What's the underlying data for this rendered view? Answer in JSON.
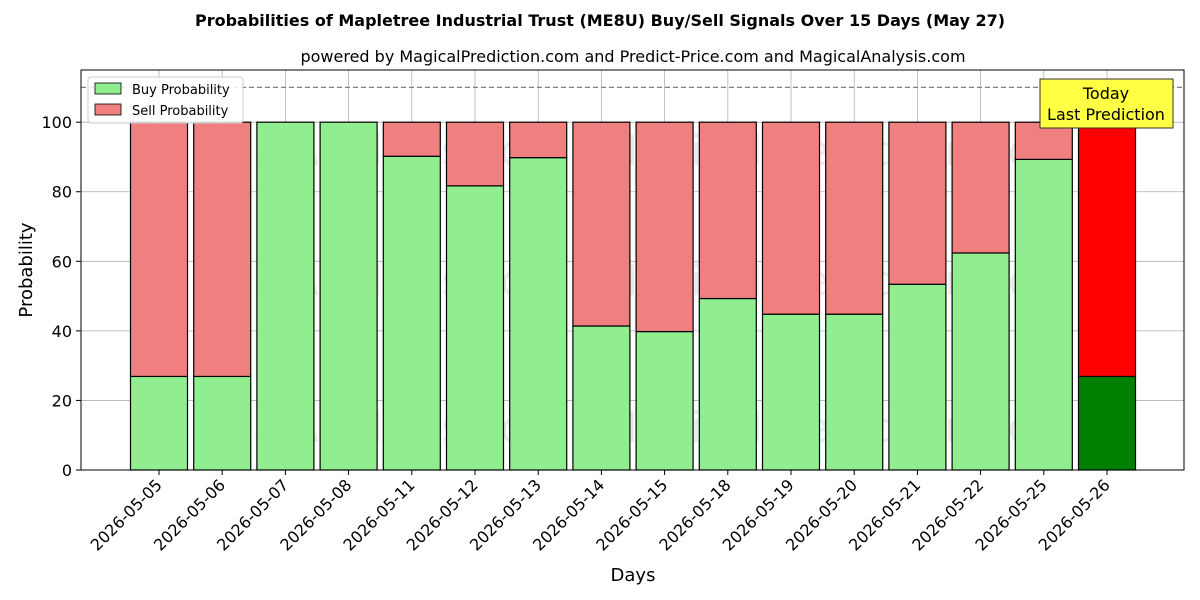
{
  "chart_data": {
    "type": "bar",
    "stacked": true,
    "title": "Probabilities of Mapletree Industrial Trust (ME8U) Buy/Sell Signals Over 15 Days (May 27)",
    "subtitle": "powered by MagicalPrediction.com and Predict-Price.com and MagicalAnalysis.com",
    "xlabel": "Days",
    "ylabel": "Probability",
    "ylim": [
      0,
      115
    ],
    "yticks": [
      "0",
      "20",
      "40",
      "60",
      "80",
      "100"
    ],
    "reference_line": 110,
    "grid": true,
    "legend_position": "top-left",
    "categories": [
      "2026-05-05",
      "2026-05-06",
      "2026-05-07",
      "2026-05-08",
      "2026-05-11",
      "2026-05-12",
      "2026-05-13",
      "2026-05-14",
      "2026-05-15",
      "2026-05-18",
      "2026-05-19",
      "2026-05-20",
      "2026-05-21",
      "2026-05-22",
      "2026-05-25",
      "2026-05-26"
    ],
    "series": [
      {
        "name": "Buy Probability",
        "color": "#90ee90",
        "highlight_color": "#008000",
        "values": [
          26.9,
          26.9,
          100,
          100,
          90.2,
          81.7,
          89.8,
          41.4,
          39.8,
          49.3,
          44.8,
          44.8,
          53.4,
          62.4,
          89.3,
          26.9
        ]
      },
      {
        "name": "Sell Probability",
        "color": "#f08080",
        "highlight_color": "#ff0000",
        "values": [
          73.1,
          73.1,
          0,
          0,
          9.8,
          18.3,
          10.2,
          58.6,
          60.2,
          50.7,
          55.2,
          55.2,
          46.6,
          37.6,
          10.7,
          73.1
        ]
      }
    ],
    "annotation": {
      "lines": [
        "Today",
        "Last Prediction"
      ],
      "color": "#ffff44"
    },
    "watermarks": [
      "MagicalAnalysis.com",
      "MagicalPrediction.com"
    ]
  }
}
